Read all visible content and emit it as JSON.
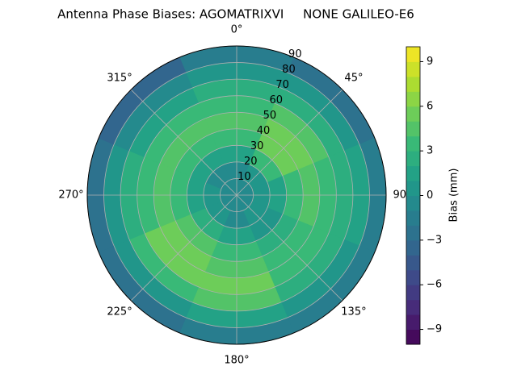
{
  "chart_data": {
    "type": "polar_contour",
    "title": "Antenna Phase Biases: AGOMATRIXVI     NONE GALILEO-E6",
    "colorbar_label": "Bias (mm)",
    "colormap": "viridis",
    "theta": [
      0,
      45,
      90,
      135,
      180,
      225,
      270,
      315
    ],
    "r": [
      5,
      15,
      25,
      35,
      45,
      55,
      65,
      75,
      85
    ],
    "values": [
      [
        -1,
        -1,
        -1,
        -1,
        -1,
        -1,
        -1,
        -1
      ],
      [
        -1,
        0,
        0,
        0,
        -1,
        0,
        0,
        -1
      ],
      [
        1,
        3,
        1,
        0,
        1,
        2,
        1,
        1
      ],
      [
        3,
        5,
        3,
        2,
        3,
        4,
        3,
        3
      ],
      [
        4,
        5,
        4,
        3,
        4,
        5,
        4,
        4
      ],
      [
        3,
        4,
        3,
        3,
        5,
        5,
        3,
        3
      ],
      [
        2,
        2,
        2,
        2,
        4,
        3,
        2,
        1
      ],
      [
        0,
        0,
        1,
        0,
        1,
        0,
        0,
        -1
      ],
      [
        -2,
        -3,
        -2,
        -2,
        -2,
        -3,
        -3,
        -4
      ]
    ],
    "rlim": [
      0,
      90
    ],
    "rticks": [
      10,
      20,
      30,
      40,
      50,
      60,
      70,
      80,
      90
    ],
    "xticks": [
      {
        "value": 0,
        "label": "0°"
      },
      {
        "value": 45,
        "label": "45°"
      },
      {
        "value": 90,
        "label": "90°"
      },
      {
        "value": 135,
        "label": "135°"
      },
      {
        "value": 180,
        "label": "180°"
      },
      {
        "value": 225,
        "label": "225°"
      },
      {
        "value": 270,
        "label": "270°"
      },
      {
        "value": 315,
        "label": "315°"
      }
    ],
    "clim": [
      -10,
      10
    ],
    "levels": 20,
    "cticks": [
      {
        "value": -9,
        "label": "−9"
      },
      {
        "value": -6,
        "label": "−6"
      },
      {
        "value": -3,
        "label": "−3"
      },
      0,
      3,
      6,
      9
    ],
    "grid": true
  }
}
